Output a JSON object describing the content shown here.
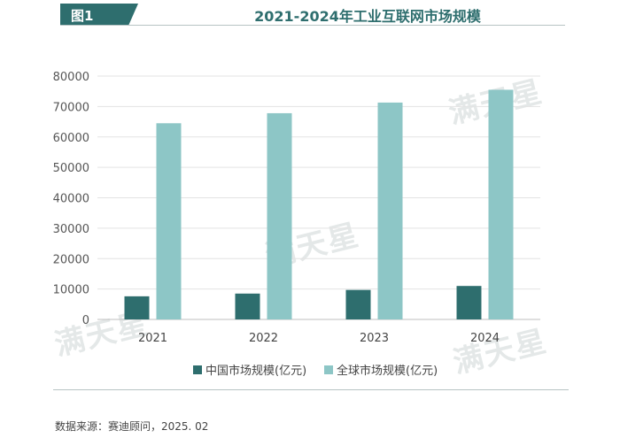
{
  "figure_tag": "图1",
  "watermark": "满天星",
  "source_note": "数据来源：赛迪顾问，2025. 02",
  "colors": {
    "china": "#2e6e6e",
    "global": "#8dc6c6",
    "accent": "#2e6e6e"
  },
  "chart_data": {
    "type": "bar",
    "title": "2021-2024年工业互联网市场规模",
    "xlabel": "",
    "ylabel": "",
    "categories": [
      "2021",
      "2022",
      "2023",
      "2024"
    ],
    "series": [
      {
        "name": "中国市场规模(亿元)",
        "values": [
          7600,
          8500,
          9700,
          11000
        ]
      },
      {
        "name": "全球市场规模(亿元)",
        "values": [
          64500,
          67800,
          71300,
          75500
        ]
      }
    ],
    "ylim": [
      0,
      80000
    ],
    "yticks": [
      "0",
      "10000",
      "20000",
      "30000",
      "40000",
      "50000",
      "60000",
      "70000",
      "80000"
    ],
    "grid": true,
    "legend": "bottom-center"
  }
}
